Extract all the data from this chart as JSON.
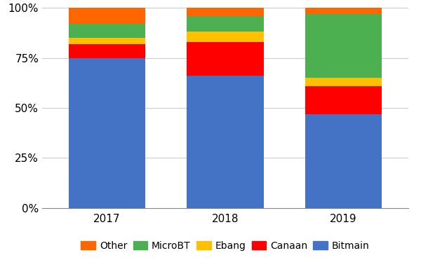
{
  "years": [
    "2017",
    "2018",
    "2019"
  ],
  "series": {
    "Bitmain": [
      75,
      66,
      47
    ],
    "Canaan": [
      7,
      17,
      14
    ],
    "Ebang": [
      3,
      5,
      4
    ],
    "MicroBT": [
      7,
      8,
      32
    ],
    "Other": [
      8,
      4,
      3
    ]
  },
  "colors": {
    "Bitmain": "#4472C4",
    "Canaan": "#FF0000",
    "Ebang": "#FFC000",
    "MicroBT": "#4CAF50",
    "Other": "#FF6600"
  },
  "order": [
    "Bitmain",
    "Canaan",
    "Ebang",
    "MicroBT",
    "Other"
  ],
  "legend_order": [
    "Other",
    "MicroBT",
    "Ebang",
    "Canaan",
    "Bitmain"
  ],
  "ylim": [
    0,
    100
  ],
  "yticks": [
    0,
    25,
    50,
    75,
    100
  ],
  "ytick_labels": [
    "0%",
    "25%",
    "50%",
    "75%",
    "100%"
  ],
  "background_color": "#ffffff",
  "grid_color": "#cccccc",
  "bar_width": 0.65
}
